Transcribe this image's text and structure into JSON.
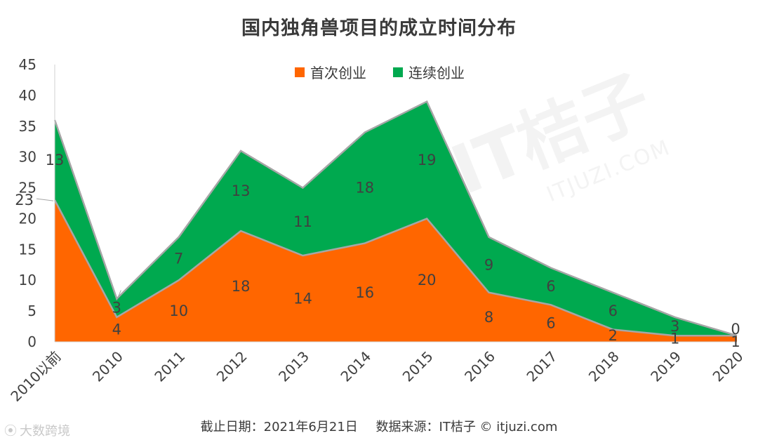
{
  "title": "国内独角兽项目的成立时间分布",
  "legend": {
    "first": "首次创业",
    "serial": "连续创业"
  },
  "footer": {
    "date": "截止日期：2021年6月21日",
    "source": "数据来源：IT桔子 © itjuzi.com"
  },
  "watermark": {
    "bottom_left": "大数跨境",
    "center_brand": "IT桔子",
    "center_domain": "ITJUZI.COM"
  },
  "colors": {
    "first": "#ff6600",
    "serial": "#00a94f",
    "outline": "#a6a6a6",
    "text": "#404040"
  },
  "chart_data": {
    "type": "area",
    "stacked": true,
    "title": "国内独角兽项目的成立时间分布",
    "categories": [
      "2010以前",
      "2010",
      "2011",
      "2012",
      "2013",
      "2014",
      "2015",
      "2016",
      "2017",
      "2018",
      "2019",
      "2020"
    ],
    "series": [
      {
        "name": "首次创业",
        "values": [
          23,
          4,
          10,
          18,
          14,
          16,
          20,
          8,
          6,
          2,
          1,
          1
        ]
      },
      {
        "name": "连续创业",
        "values": [
          13,
          3,
          7,
          13,
          11,
          18,
          19,
          9,
          6,
          6,
          3,
          0
        ]
      }
    ],
    "yticks": [
      0,
      5,
      10,
      15,
      20,
      25,
      30,
      35,
      40,
      45
    ],
    "ylim": [
      0,
      45
    ],
    "grid": false,
    "legend_position": "top"
  }
}
